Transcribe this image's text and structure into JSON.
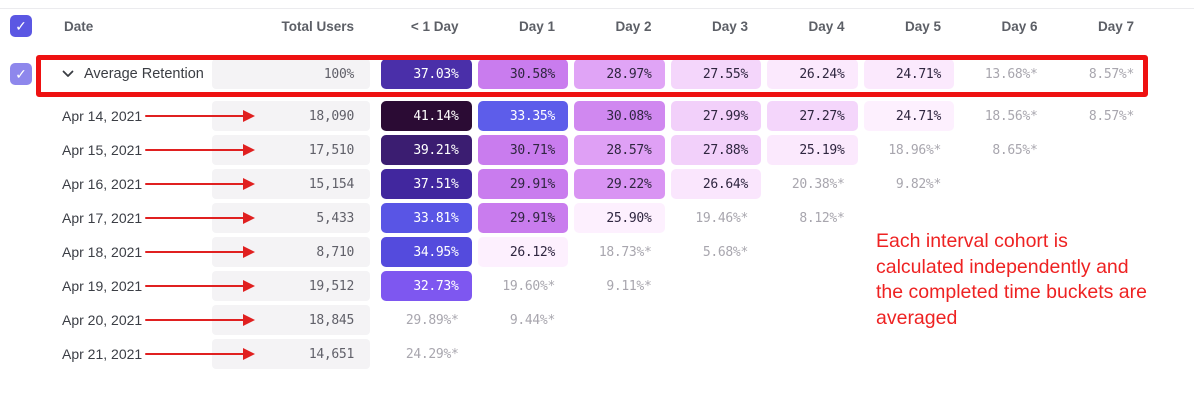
{
  "columns": [
    "Date",
    "Total Users",
    "< 1 Day",
    "Day 1",
    "Day 2",
    "Day 3",
    "Day 4",
    "Day 5",
    "Day 6",
    "Day 7"
  ],
  "average_row": {
    "label": "Average Retention",
    "total": "100%",
    "cells": [
      {
        "v": "37.03%",
        "bg": "#4a2fa9",
        "fg": "#ffffff"
      },
      {
        "v": "30.58%",
        "bg": "#c97cee",
        "fg": "#2f2640"
      },
      {
        "v": "28.97%",
        "bg": "#e0a4f6",
        "fg": "#2f2640"
      },
      {
        "v": "27.55%",
        "bg": "#f4d6fb",
        "fg": "#2f2640"
      },
      {
        "v": "26.24%",
        "bg": "#fbe9fd",
        "fg": "#2f2640"
      },
      {
        "v": "24.71%",
        "bg": "#fbe9fd",
        "fg": "#2f2640"
      },
      {
        "v": "13.68%*",
        "bg": "",
        "fg": ""
      },
      {
        "v": "8.57%*",
        "bg": "",
        "fg": ""
      }
    ]
  },
  "rows": [
    {
      "date": "Apr 14, 2021",
      "total": "18,090",
      "cells": [
        {
          "v": "41.14%",
          "bg": "#2b0b34",
          "fg": "#ffffff"
        },
        {
          "v": "33.35%",
          "bg": "#5d5dea",
          "fg": "#ffffff"
        },
        {
          "v": "30.08%",
          "bg": "#d088f0",
          "fg": "#2f2640"
        },
        {
          "v": "27.99%",
          "bg": "#f2d0fa",
          "fg": "#2f2640"
        },
        {
          "v": "27.27%",
          "bg": "#f4d6fb",
          "fg": "#2f2640"
        },
        {
          "v": "24.71%",
          "bg": "#fdf0fe",
          "fg": "#2f2640"
        },
        {
          "v": "18.56%*",
          "bg": "",
          "fg": ""
        },
        {
          "v": "8.57%*",
          "bg": "",
          "fg": ""
        }
      ]
    },
    {
      "date": "Apr 15, 2021",
      "total": "17,510",
      "cells": [
        {
          "v": "39.21%",
          "bg": "#3b1d71",
          "fg": "#ffffff"
        },
        {
          "v": "30.71%",
          "bg": "#c97cee",
          "fg": "#2f2640"
        },
        {
          "v": "28.57%",
          "bg": "#dfa0f5",
          "fg": "#2f2640"
        },
        {
          "v": "27.88%",
          "bg": "#f2d0fa",
          "fg": "#2f2640"
        },
        {
          "v": "25.19%",
          "bg": "#fbe9fd",
          "fg": "#2f2640"
        },
        {
          "v": "18.96%*",
          "bg": "",
          "fg": ""
        },
        {
          "v": "8.65%*",
          "bg": "",
          "fg": ""
        }
      ]
    },
    {
      "date": "Apr 16, 2021",
      "total": "15,154",
      "cells": [
        {
          "v": "37.51%",
          "bg": "#41279e",
          "fg": "#ffffff"
        },
        {
          "v": "29.91%",
          "bg": "#c97cee",
          "fg": "#2f2640"
        },
        {
          "v": "29.22%",
          "bg": "#d994f3",
          "fg": "#2f2640"
        },
        {
          "v": "26.64%",
          "bg": "#fae6fd",
          "fg": "#2f2640"
        },
        {
          "v": "20.38%*",
          "bg": "",
          "fg": ""
        },
        {
          "v": "9.82%*",
          "bg": "",
          "fg": ""
        }
      ]
    },
    {
      "date": "Apr 17, 2021",
      "total": "5,433",
      "cells": [
        {
          "v": "33.81%",
          "bg": "#5955e5",
          "fg": "#ffffff"
        },
        {
          "v": "29.91%",
          "bg": "#c97cee",
          "fg": "#2f2640"
        },
        {
          "v": "25.90%",
          "bg": "#fdf0fe",
          "fg": "#2f2640"
        },
        {
          "v": "19.46%*",
          "bg": "",
          "fg": ""
        },
        {
          "v": "8.12%*",
          "bg": "",
          "fg": ""
        }
      ]
    },
    {
      "date": "Apr 18, 2021",
      "total": "8,710",
      "cells": [
        {
          "v": "34.95%",
          "bg": "#544bdd",
          "fg": "#ffffff"
        },
        {
          "v": "26.12%",
          "bg": "#fdf0fe",
          "fg": "#2f2640"
        },
        {
          "v": "18.73%*",
          "bg": "",
          "fg": ""
        },
        {
          "v": "5.68%*",
          "bg": "",
          "fg": ""
        }
      ]
    },
    {
      "date": "Apr 19, 2021",
      "total": "19,512",
      "cells": [
        {
          "v": "32.73%",
          "bg": "#7e57f0",
          "fg": "#ffffff"
        },
        {
          "v": "19.60%*",
          "bg": "",
          "fg": ""
        },
        {
          "v": "9.11%*",
          "bg": "",
          "fg": ""
        }
      ]
    },
    {
      "date": "Apr 20, 2021",
      "total": "18,845",
      "cells": [
        {
          "v": "29.89%*",
          "bg": "",
          "fg": ""
        },
        {
          "v": "9.44%*",
          "bg": "",
          "fg": ""
        }
      ]
    },
    {
      "date": "Apr 21, 2021",
      "total": "14,651",
      "cells": [
        {
          "v": "24.29%*",
          "bg": "",
          "fg": ""
        }
      ]
    }
  ],
  "annotation": {
    "note_lines": [
      "Each interval cohort is",
      "calculated independently and",
      "the completed time buckets are",
      "averaged"
    ],
    "note_color": "#ee2222",
    "highlight_color": "#ee1111",
    "arrow_color": "#e02020"
  },
  "icons": {
    "checkmark": "✓",
    "chevron_down": "chevron-down"
  },
  "colors": {
    "header_checkbox": "#5b57e3",
    "row_checkbox": "#8e87ec",
    "asterisk_text": "#a8a6ae"
  }
}
